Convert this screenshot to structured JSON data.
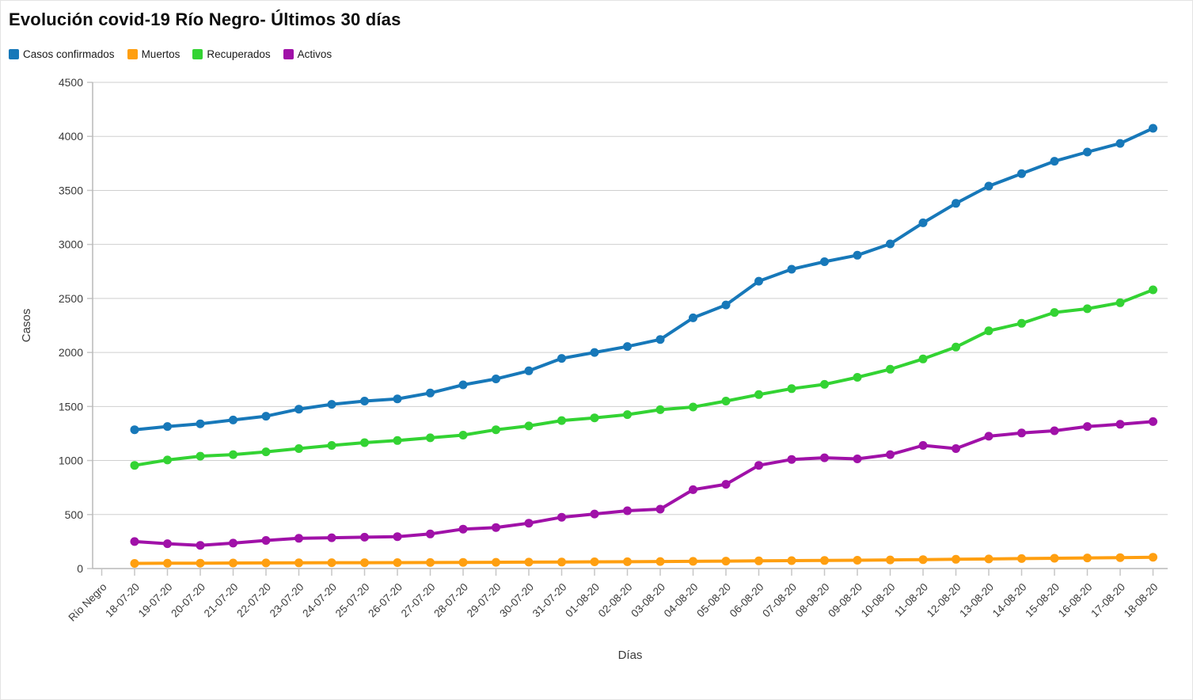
{
  "title": "Evolución covid-19 Río Negro- Últimos 30 días",
  "chart_data": {
    "type": "line",
    "title": "Evolución covid-19 Río Negro- Últimos 30 días",
    "xlabel": "Días",
    "ylabel": "Casos",
    "ylim": [
      0,
      4500
    ],
    "ytick_step": 500,
    "grid": true,
    "legend_position": "top-left",
    "markers": true,
    "categories": [
      "Río Negro",
      "18-07-20",
      "19-07-20",
      "20-07-20",
      "21-07-20",
      "22-07-20",
      "23-07-20",
      "24-07-20",
      "25-07-20",
      "26-07-20",
      "27-07-20",
      "28-07-20",
      "29-07-20",
      "30-07-20",
      "31-07-20",
      "01-08-20",
      "02-08-20",
      "03-08-20",
      "04-08-20",
      "05-08-20",
      "06-08-20",
      "07-08-20",
      "08-08-20",
      "09-08-20",
      "10-08-20",
      "11-08-20",
      "12-08-20",
      "13-08-20",
      "14-08-20",
      "15-08-20",
      "16-08-20",
      "17-08-20",
      "18-08-20"
    ],
    "series": [
      {
        "name": "Casos confirmados",
        "color": "#1778b9",
        "values": [
          null,
          1285,
          1315,
          1340,
          1375,
          1410,
          1475,
          1520,
          1550,
          1570,
          1625,
          1700,
          1755,
          1830,
          1945,
          2000,
          2055,
          2120,
          2320,
          2440,
          2660,
          2770,
          2840,
          2900,
          3005,
          3200,
          3380,
          3540,
          3655,
          3770,
          3855,
          3935,
          4075
        ]
      },
      {
        "name": "Muertos",
        "color": "#ff9f10",
        "values": [
          null,
          48,
          49,
          50,
          51,
          52,
          53,
          54,
          54,
          55,
          56,
          57,
          58,
          59,
          60,
          62,
          63,
          65,
          67,
          69,
          71,
          73,
          75,
          77,
          80,
          83,
          86,
          89,
          92,
          95,
          98,
          101,
          105
        ]
      },
      {
        "name": "Recuperados",
        "color": "#33d333",
        "values": [
          null,
          955,
          1005,
          1040,
          1055,
          1080,
          1110,
          1140,
          1165,
          1185,
          1210,
          1235,
          1285,
          1320,
          1370,
          1395,
          1425,
          1470,
          1495,
          1550,
          1610,
          1665,
          1705,
          1770,
          1845,
          1940,
          2050,
          2200,
          2270,
          2370,
          2405,
          2460,
          2580
        ]
      },
      {
        "name": "Activos",
        "color": "#a011a8",
        "values": [
          null,
          250,
          230,
          215,
          235,
          260,
          280,
          285,
          290,
          295,
          320,
          365,
          380,
          420,
          475,
          505,
          535,
          550,
          730,
          780,
          955,
          1010,
          1025,
          1015,
          1055,
          1140,
          1110,
          1225,
          1255,
          1275,
          1315,
          1335,
          1360
        ]
      }
    ]
  }
}
